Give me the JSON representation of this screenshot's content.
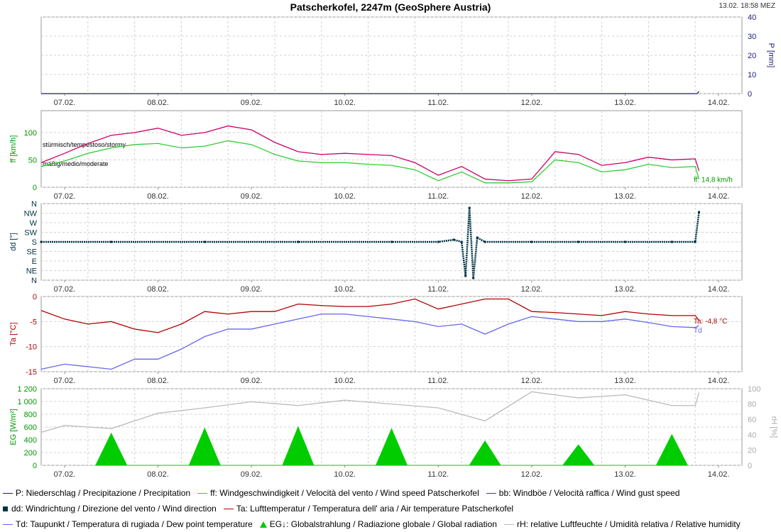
{
  "header": {
    "title": "Patscherkofel, 2247m (GeoSphere Austria)",
    "timestamp": "13.02. 18:58 MEZ"
  },
  "chart_data": [
    {
      "type": "line",
      "id": "precip",
      "ylabel": "P [mm]",
      "ylim": [
        0,
        40
      ],
      "yticks": [
        "40",
        "30",
        "20",
        "10",
        "0"
      ],
      "x_dates": [
        "07.02.",
        "08.02.",
        "09.02.",
        "10.02.",
        "11.02.",
        "12.02.",
        "13.02.",
        "14.02."
      ],
      "series": [
        {
          "name": "P",
          "color": "#1a1a7a",
          "x": [
            "06.02. 18:00",
            "13.02. 18:30",
            "13.02. 18:58"
          ],
          "values": [
            0,
            0,
            1.2
          ]
        }
      ]
    },
    {
      "type": "line",
      "id": "wind-speed",
      "ylabel": "ff [km/h]",
      "ylim": [
        0,
        140
      ],
      "yticks": [
        "100",
        "50",
        "0"
      ],
      "annotations": [
        "stürmisch/tempestoso/stormy",
        "mäßig/medio/moderate"
      ],
      "last_value_label": "ff: 14,8 km/h",
      "x_dates": [
        "07.02.",
        "08.02.",
        "09.02.",
        "10.02.",
        "11.02.",
        "12.02.",
        "13.02.",
        "14.02."
      ],
      "series": [
        {
          "name": "bb",
          "color": "#cc0066",
          "x": [
            "06.02. 18:00",
            "07.02. 00:00",
            "07.02. 06:00",
            "07.02. 12:00",
            "07.02. 18:00",
            "08.02. 00:00",
            "08.02. 06:00",
            "08.02. 12:00",
            "08.02. 18:00",
            "09.02. 00:00",
            "09.02. 06:00",
            "09.02. 12:00",
            "09.02. 18:00",
            "10.02. 00:00",
            "10.02. 06:00",
            "10.02. 12:00",
            "10.02. 18:00",
            "11.02. 00:00",
            "11.02. 06:00",
            "11.02. 12:00",
            "11.02. 18:00",
            "12.02. 00:00",
            "12.02. 06:00",
            "12.02. 12:00",
            "12.02. 18:00",
            "13.02. 00:00",
            "13.02. 06:00",
            "13.02. 12:00",
            "13.02. 18:00",
            "13.02. 18:58"
          ],
          "values": [
            45,
            62,
            80,
            95,
            100,
            108,
            95,
            100,
            112,
            105,
            82,
            65,
            60,
            62,
            60,
            58,
            45,
            22,
            38,
            15,
            12,
            15,
            65,
            60,
            40,
            45,
            55,
            50,
            52,
            30
          ]
        },
        {
          "name": "ff",
          "color": "#33cc33",
          "x": [
            "06.02. 18:00",
            "07.02. 00:00",
            "07.02. 06:00",
            "07.02. 12:00",
            "07.02. 18:00",
            "08.02. 00:00",
            "08.02. 06:00",
            "08.02. 12:00",
            "08.02. 18:00",
            "09.02. 00:00",
            "09.02. 06:00",
            "09.02. 12:00",
            "09.02. 18:00",
            "10.02. 00:00",
            "10.02. 06:00",
            "10.02. 12:00",
            "10.02. 18:00",
            "11.02. 00:00",
            "11.02. 06:00",
            "11.02. 12:00",
            "11.02. 18:00",
            "12.02. 00:00",
            "12.02. 06:00",
            "12.02. 12:00",
            "12.02. 18:00",
            "13.02. 00:00",
            "13.02. 06:00",
            "13.02. 12:00",
            "13.02. 18:00",
            "13.02. 18:58"
          ],
          "values": [
            38,
            48,
            62,
            72,
            78,
            80,
            72,
            75,
            85,
            78,
            60,
            48,
            45,
            45,
            42,
            40,
            32,
            12,
            28,
            8,
            8,
            10,
            50,
            45,
            28,
            32,
            42,
            36,
            38,
            15
          ]
        }
      ]
    },
    {
      "type": "scatter",
      "id": "wind-direction",
      "ylabel": "dd [°]",
      "yticks": [
        "N",
        "NW",
        "W",
        "SW",
        "S",
        "SE",
        "E",
        "NE",
        "N"
      ],
      "x_dates": [
        "07.02.",
        "08.02.",
        "09.02.",
        "10.02.",
        "11.02.",
        "12.02.",
        "13.02.",
        "14.02."
      ],
      "series": [
        {
          "name": "dd",
          "color": "#003344",
          "x": [
            "06.02. 18:00",
            "07.02. 12:00",
            "08.02. 12:00",
            "09.02. 12:00",
            "10.02. 12:00",
            "11.02. 00:00",
            "11.02. 04:00",
            "11.02. 06:00",
            "11.02. 07:00",
            "11.02. 08:00",
            "11.02. 09:00",
            "11.02. 10:00",
            "11.02. 12:00",
            "12.02. 00:00",
            "12.02. 12:00",
            "13.02. 00:00",
            "13.02. 12:00",
            "13.02. 18:00",
            "13.02. 18:58"
          ],
          "values": [
            180,
            180,
            180,
            180,
            180,
            180,
            190,
            180,
            20,
            340,
            10,
            200,
            180,
            180,
            180,
            180,
            180,
            180,
            320
          ]
        }
      ]
    },
    {
      "type": "line",
      "id": "temperature",
      "ylabel": "Ta [°C]",
      "ylim": [
        -15,
        0
      ],
      "yticks": [
        "0",
        "-5",
        "-10",
        "-15"
      ],
      "last_value_label": "Ta: -4,8 °C",
      "series_label": "Td",
      "x_dates": [
        "07.02.",
        "08.02.",
        "09.02.",
        "10.02.",
        "11.02.",
        "12.02.",
        "13.02.",
        "14.02."
      ],
      "series": [
        {
          "name": "Ta",
          "color": "#b30000",
          "x": [
            "06.02. 18:00",
            "07.02. 00:00",
            "07.02. 06:00",
            "07.02. 12:00",
            "07.02. 18:00",
            "08.02. 00:00",
            "08.02. 06:00",
            "08.02. 12:00",
            "08.02. 18:00",
            "09.02. 00:00",
            "09.02. 06:00",
            "09.02. 12:00",
            "09.02. 18:00",
            "10.02. 00:00",
            "10.02. 06:00",
            "10.02. 12:00",
            "10.02. 18:00",
            "11.02. 00:00",
            "11.02. 06:00",
            "11.02. 12:00",
            "11.02. 18:00",
            "12.02. 00:00",
            "12.02. 06:00",
            "12.02. 12:00",
            "12.02. 18:00",
            "13.02. 00:00",
            "13.02. 06:00",
            "13.02. 12:00",
            "13.02. 18:00",
            "13.02. 18:58"
          ],
          "values": [
            -2.8,
            -4.5,
            -5.5,
            -5,
            -6.5,
            -7.2,
            -5.5,
            -3,
            -3.5,
            -3,
            -3,
            -1.5,
            -1.8,
            -2,
            -2,
            -1.5,
            -0.5,
            -2.5,
            -1.5,
            -0.5,
            -0.5,
            -3,
            -3.2,
            -3.5,
            -3.8,
            -3,
            -3.5,
            -3.8,
            -3.8,
            -4.8
          ]
        },
        {
          "name": "Td",
          "color": "#6666ee",
          "x": [
            "06.02. 18:00",
            "07.02. 00:00",
            "07.02. 06:00",
            "07.02. 12:00",
            "07.02. 18:00",
            "08.02. 00:00",
            "08.02. 06:00",
            "08.02. 12:00",
            "08.02. 18:00",
            "09.02. 00:00",
            "09.02. 06:00",
            "09.02. 12:00",
            "09.02. 18:00",
            "10.02. 00:00",
            "10.02. 06:00",
            "10.02. 12:00",
            "10.02. 18:00",
            "11.02. 00:00",
            "11.02. 06:00",
            "11.02. 12:00",
            "11.02. 18:00",
            "12.02. 00:00",
            "12.02. 06:00",
            "12.02. 12:00",
            "12.02. 18:00",
            "13.02. 00:00",
            "13.02. 06:00",
            "13.02. 12:00",
            "13.02. 18:00",
            "13.02. 18:58"
          ],
          "values": [
            -14.5,
            -13.5,
            -14,
            -14.5,
            -12.5,
            -12.5,
            -10.5,
            -8,
            -6.5,
            -6.5,
            -5.5,
            -4.5,
            -3.5,
            -3.5,
            -4,
            -4.5,
            -5,
            -6,
            -5.5,
            -7.5,
            -5.5,
            -4,
            -4.5,
            -5,
            -5,
            -4.5,
            -5.2,
            -6,
            -6.2,
            -5.8
          ]
        }
      ]
    },
    {
      "type": "area",
      "id": "radiation-humidity",
      "ylabel": "EG [W/m²]",
      "ylim": [
        0,
        1200
      ],
      "yticks": [
        "1 200",
        "1 000",
        "800",
        "600",
        "400",
        "200",
        "0"
      ],
      "y2label": "rH [%]",
      "y2lim": [
        0,
        100
      ],
      "y2ticks": [
        "100",
        "80",
        "60",
        "40",
        "20",
        "0"
      ],
      "x_dates": [
        "07.02.",
        "08.02.",
        "09.02.",
        "10.02.",
        "11.02.",
        "12.02.",
        "13.02.",
        "14.02."
      ],
      "series": [
        {
          "name": "EG",
          "color": "#00cc00",
          "x": [
            "07.02. 08:00",
            "07.02. 12:00",
            "07.02. 16:00",
            "08.02. 08:00",
            "08.02. 12:00",
            "08.02. 16:00",
            "09.02. 08:00",
            "09.02. 12:00",
            "09.02. 16:00",
            "10.02. 08:00",
            "10.02. 12:00",
            "10.02. 16:00",
            "11.02. 08:00",
            "11.02. 12:00",
            "11.02. 16:00",
            "12.02. 08:00",
            "12.02. 12:00",
            "12.02. 16:00",
            "13.02. 08:00",
            "13.02. 12:00",
            "13.02. 16:00"
          ],
          "values": [
            0,
            500,
            0,
            0,
            580,
            0,
            0,
            600,
            0,
            0,
            570,
            0,
            0,
            380,
            0,
            0,
            320,
            0,
            0,
            480,
            0
          ]
        },
        {
          "name": "rH",
          "color": "#bbbbbb",
          "axis": "right",
          "x": [
            "06.02. 18:00",
            "07.02. 00:00",
            "07.02. 12:00",
            "08.02. 00:00",
            "08.02. 12:00",
            "09.02. 00:00",
            "09.02. 12:00",
            "10.02. 00:00",
            "10.02. 12:00",
            "11.02. 00:00",
            "11.02. 12:00",
            "12.02. 00:00",
            "12.02. 12:00",
            "13.02. 00:00",
            "13.02. 12:00",
            "13.02. 18:00",
            "13.02. 18:58"
          ],
          "values": [
            43,
            52,
            48,
            68,
            75,
            83,
            78,
            85,
            80,
            75,
            58,
            96,
            88,
            92,
            78,
            78,
            95
          ]
        }
      ]
    }
  ],
  "legend": {
    "rows": [
      [
        {
          "type": "line",
          "color": "#1a1a7a",
          "label": "P: Niederschlag / Precipitazione / Precipitation"
        },
        {
          "type": "line",
          "color": "#33cc33",
          "label": "ff: Windgeschwindigkeit / Velocità del vento / Wind speed  Patscherkofel"
        },
        {
          "type": "line",
          "color": "#cc0066",
          "label": "bb: Windböe / Velocità raffica / Wind gust speed"
        }
      ],
      [
        {
          "type": "square",
          "color": "#003344",
          "label": "dd: Windrichtung / Direzione del vento / Wind direction"
        },
        {
          "type": "line",
          "color": "#b30000",
          "label": "Ta: Lufttemperatur / Temperatura dell' aria / Air temperature  Patscherkofel"
        }
      ],
      [
        {
          "type": "line",
          "color": "#6666ee",
          "label": "Td: Taupunkt / Temperatura di rugiada / Dew point temperature"
        },
        {
          "type": "triangle",
          "color": "#00cc00",
          "label": "EG↓: Globalstrahlung / Radiazione globale / Global radiation"
        },
        {
          "type": "line",
          "color": "#bbbbbb",
          "label": "rH: relative Luftfeuchte / Umidità relativa / Relative humidity"
        }
      ]
    ]
  }
}
